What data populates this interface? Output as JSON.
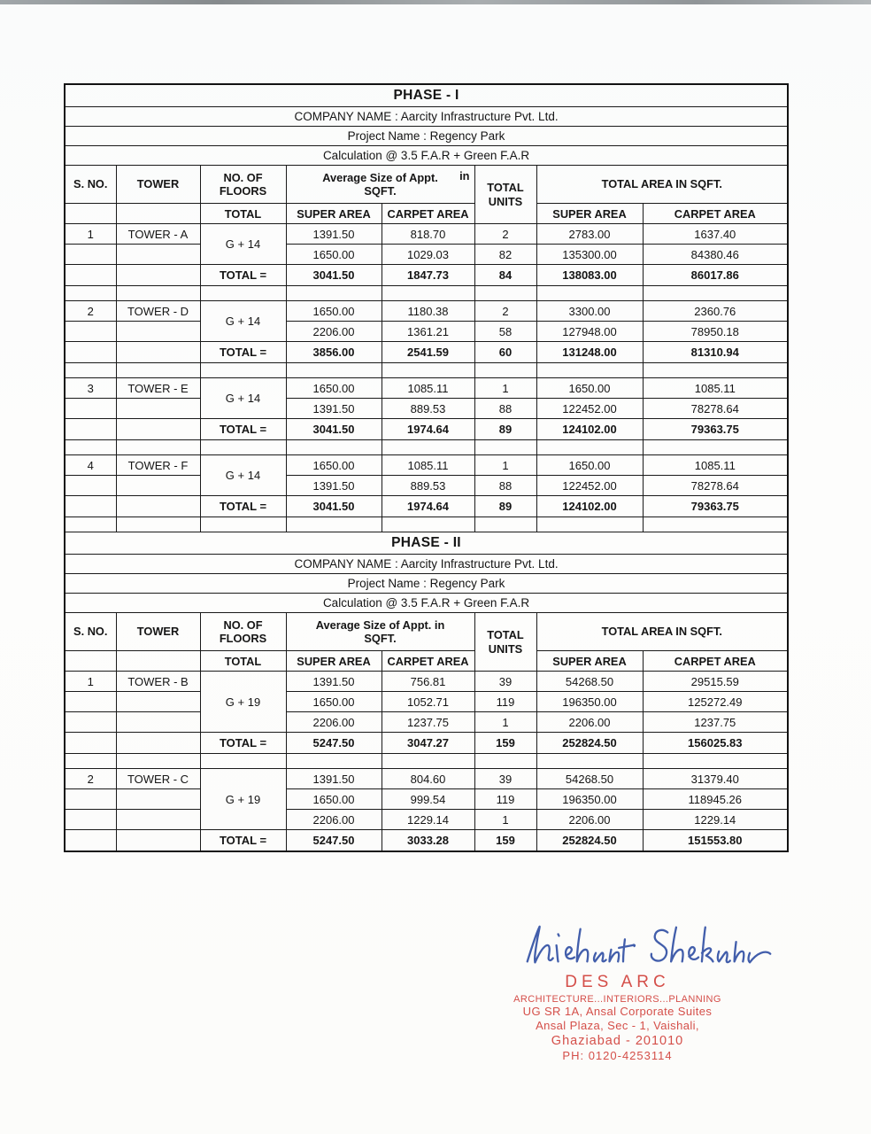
{
  "phases": [
    {
      "title": "PHASE - I",
      "company_line": "COMPANY NAME : Aarcity Infrastructure Pvt. Ltd.",
      "project_line": "Project Name : Regency Park",
      "calc_line": "Calculation @ 3.5 F.A.R + Green F.A.R",
      "col_headers": {
        "sno": "S. NO.",
        "tower": "TOWER",
        "floors": "NO. OF FLOORS",
        "avg_main": "Average Size of Appt.",
        "avg_in": "in",
        "avg_sub": "SQFT.",
        "total_units": "TOTAL UNITS",
        "total_area": "TOTAL AREA IN SQFT.",
        "sub_total": "TOTAL",
        "sub_super": "SUPER AREA",
        "sub_carpet": "CARPET AREA"
      },
      "total_label": "TOTAL =",
      "towers": [
        {
          "sno": "1",
          "name": "TOWER - A",
          "floors": "G + 14",
          "rows": [
            [
              "1391.50",
              "818.70",
              "2",
              "2783.00",
              "1637.40"
            ],
            [
              "1650.00",
              "1029.03",
              "82",
              "135300.00",
              "84380.46"
            ]
          ],
          "total": [
            "3041.50",
            "1847.73",
            "84",
            "138083.00",
            "86017.86"
          ]
        },
        {
          "sno": "2",
          "name": "TOWER - D",
          "floors": "G + 14",
          "rows": [
            [
              "1650.00",
              "1180.38",
              "2",
              "3300.00",
              "2360.76"
            ],
            [
              "2206.00",
              "1361.21",
              "58",
              "127948.00",
              "78950.18"
            ]
          ],
          "total": [
            "3856.00",
            "2541.59",
            "60",
            "131248.00",
            "81310.94"
          ]
        },
        {
          "sno": "3",
          "name": "TOWER - E",
          "floors": "G + 14",
          "rows": [
            [
              "1650.00",
              "1085.11",
              "1",
              "1650.00",
              "1085.11"
            ],
            [
              "1391.50",
              "889.53",
              "88",
              "122452.00",
              "78278.64"
            ]
          ],
          "total": [
            "3041.50",
            "1974.64",
            "89",
            "124102.00",
            "79363.75"
          ]
        },
        {
          "sno": "4",
          "name": "TOWER - F",
          "floors": "G + 14",
          "rows": [
            [
              "1650.00",
              "1085.11",
              "1",
              "1650.00",
              "1085.11"
            ],
            [
              "1391.50",
              "889.53",
              "88",
              "122452.00",
              "78278.64"
            ]
          ],
          "total": [
            "3041.50",
            "1974.64",
            "89",
            "124102.00",
            "79363.75"
          ]
        }
      ]
    },
    {
      "title": "PHASE - II",
      "company_line": "COMPANY NAME : Aarcity Infrastructure Pvt. Ltd.",
      "project_line": "Project Name : Regency Park",
      "calc_line": "Calculation @ 3.5 F.A.R + Green F.A.R",
      "col_headers": {
        "sno": "S. NO.",
        "tower": "TOWER",
        "floors": "NO. OF FLOORS",
        "avg_main": "Average Size of Appt. in",
        "avg_in": "",
        "avg_sub": "SQFT.",
        "total_units": "TOTAL UNITS",
        "total_area": "TOTAL AREA IN SQFT.",
        "sub_total": "TOTAL",
        "sub_super": "SUPER AREA",
        "sub_carpet": "CARPET AREA"
      },
      "total_label": "TOTAL =",
      "towers": [
        {
          "sno": "1",
          "name": "TOWER - B",
          "floors": "G + 19",
          "rows": [
            [
              "1391.50",
              "756.81",
              "39",
              "54268.50",
              "29515.59"
            ],
            [
              "1650.00",
              "1052.71",
              "119",
              "196350.00",
              "125272.49"
            ],
            [
              "2206.00",
              "1237.75",
              "1",
              "2206.00",
              "1237.75"
            ]
          ],
          "total": [
            "5247.50",
            "3047.27",
            "159",
            "252824.50",
            "156025.83"
          ]
        },
        {
          "sno": "2",
          "name": "TOWER - C",
          "floors": "G + 19",
          "rows": [
            [
              "1391.50",
              "804.60",
              "39",
              "54268.50",
              "31379.40"
            ],
            [
              "1650.00",
              "999.54",
              "119",
              "196350.00",
              "118945.26"
            ],
            [
              "2206.00",
              "1229.14",
              "1",
              "2206.00",
              "1229.14"
            ]
          ],
          "total": [
            "5247.50",
            "3033.28",
            "159",
            "252824.50",
            "151553.80"
          ]
        }
      ]
    }
  ],
  "signature": {
    "name": "Nishant Shekhar",
    "ink_color": "#2e4da3"
  },
  "stamp": {
    "name": "DES ARC",
    "tagline": "ARCHITECTURE...INTERIORS...PLANNING",
    "address1": "UG SR 1A, Ansal Corporate Suites",
    "address2": "Ansal Plaza, Sec - 1, Vaishali,",
    "address3": "Ghaziabad - 201010",
    "phone": "PH: 0120-4253114",
    "color": "#d2423c"
  }
}
